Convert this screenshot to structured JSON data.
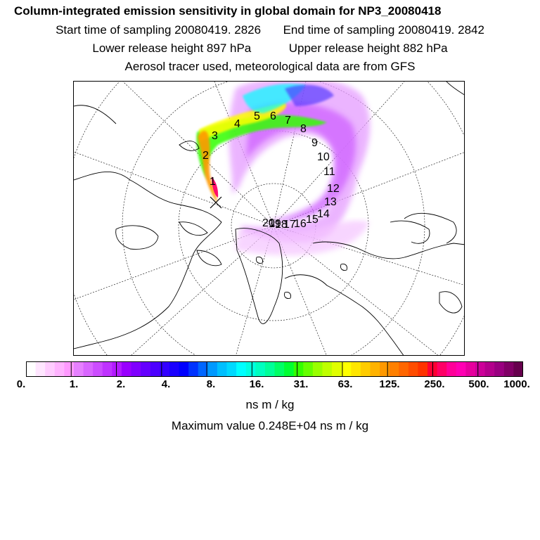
{
  "header": {
    "title": "Column-integrated emission sensitivity in global domain for NP3_20080418",
    "start_label": "Start time of sampling 20080419.  2826",
    "end_label": "End time of sampling 20080419.  2842",
    "lower_label": "Lower release height  897 hPa",
    "upper_label": "Upper release height  882 hPa",
    "tracer_note": "Aerosol tracer used, meteorological data are from GFS"
  },
  "map": {
    "projection": "north-polar-stereographic",
    "trajectory_labels": [
      "1",
      "2",
      "3",
      "4",
      "5",
      "6",
      "7",
      "8",
      "9",
      "10",
      "11",
      "12",
      "13",
      "14",
      "15",
      "16",
      "17",
      "18",
      "19",
      "20"
    ],
    "release_marker": "x-icon"
  },
  "colorbar": {
    "tick_labels": [
      "0.",
      "1.",
      "2.",
      "4.",
      "8.",
      "16.",
      "31.",
      "63.",
      "125.",
      "250.",
      "500.",
      "1000."
    ],
    "colors": [
      "#ffffff",
      "#ffe6ff",
      "#ffccff",
      "#ffb3ff",
      "#ff99ff",
      "#e680ff",
      "#d966ff",
      "#cc4dff",
      "#bf33ff",
      "#b31aff",
      "#9900ff",
      "#8000ff",
      "#6600ff",
      "#4d00ff",
      "#3300ff",
      "#1a00ff",
      "#0000ff",
      "#0033ff",
      "#0066ff",
      "#0099ff",
      "#00bfff",
      "#00d9ff",
      "#00ffff",
      "#00ffe0",
      "#00ffc0",
      "#00ff99",
      "#00ff66",
      "#00ff33",
      "#33ff00",
      "#66ff00",
      "#99ff00",
      "#bfff00",
      "#e0ff00",
      "#ffff00",
      "#ffe600",
      "#ffcc00",
      "#ffb300",
      "#ff9900",
      "#ff8000",
      "#ff6600",
      "#ff4d00",
      "#ff3300",
      "#ff0033",
      "#ff0066",
      "#ff0099",
      "#ff00b3",
      "#e6009e",
      "#cc0099",
      "#b3008c",
      "#990080",
      "#800066",
      "#66004d"
    ]
  },
  "footer": {
    "units": "ns m / kg",
    "maximum": "Maximum value  0.248E+04 ns m / kg"
  }
}
